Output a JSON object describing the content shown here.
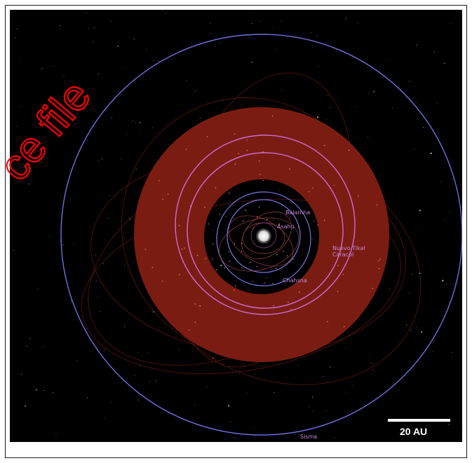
{
  "orbit_map": {
    "bodies": [
      {
        "name": "Balamna"
      },
      {
        "name": "Asahu"
      },
      {
        "name": "Nuevo Tikal"
      },
      {
        "name": "Caracol"
      },
      {
        "name": "Chahsna"
      },
      {
        "name": "Sisma"
      }
    ],
    "scale_bar": {
      "label": "20 AU"
    },
    "colors": {
      "background": "#000000",
      "belt": "#7a1c12",
      "outer_orbit": "#6f6fe0",
      "pink_orbit": "#d26ad4",
      "label": "#c889d8"
    }
  },
  "watermark": {
    "text": "ce file",
    "color": "#ff0000"
  }
}
